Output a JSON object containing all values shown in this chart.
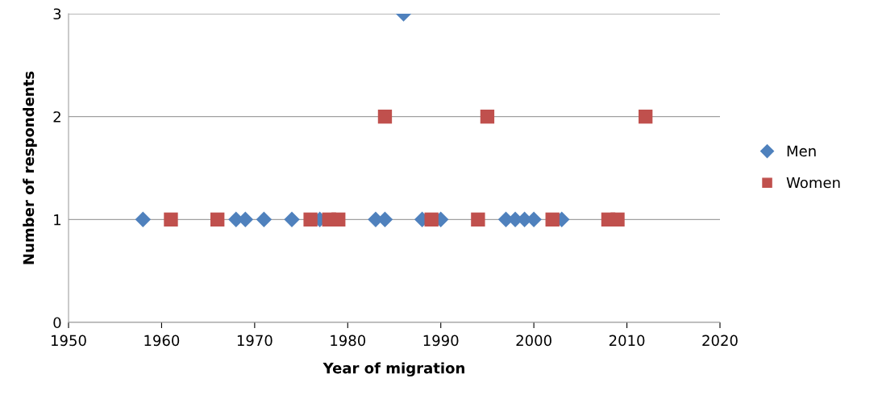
{
  "chart_data": {
    "type": "scatter",
    "xlabel": "Year of migration",
    "ylabel": "Number of respondents",
    "xlim": [
      1950,
      2020
    ],
    "xticks": [
      1950,
      1960,
      1970,
      1980,
      1990,
      2000,
      2010,
      2020
    ],
    "ylim": [
      0,
      3
    ],
    "yticks": [
      0,
      1,
      2,
      3
    ],
    "grid": "y",
    "legend": "right",
    "series": [
      {
        "name": "Men",
        "color": "#4f81bd",
        "marker": "diamond",
        "x": [
          1958,
          1968,
          1969,
          1971,
          1974,
          1977,
          1983,
          1984,
          1986,
          1988,
          1990,
          1997,
          1998,
          1999,
          2000,
          2003
        ],
        "values": [
          1,
          1,
          1,
          1,
          1,
          1,
          1,
          1,
          3,
          1,
          1,
          1,
          1,
          1,
          1,
          1
        ]
      },
      {
        "name": "Women",
        "color": "#c0504d",
        "marker": "square",
        "x": [
          1961,
          1966,
          1976,
          1978,
          1979,
          1984,
          1989,
          1994,
          1995,
          2002,
          2008,
          2009,
          2012
        ],
        "values": [
          1,
          1,
          1,
          1,
          1,
          2,
          1,
          1,
          2,
          1,
          1,
          1,
          2
        ]
      }
    ]
  }
}
